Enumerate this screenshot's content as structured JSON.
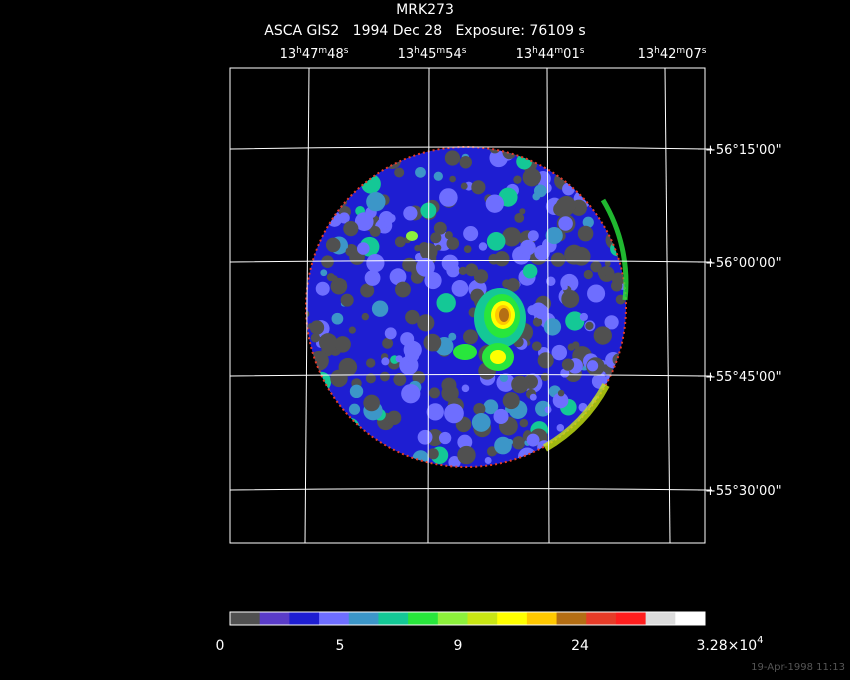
{
  "header": {
    "title": "MRK273",
    "subtitle": "ASCA GIS2   1994 Dec 28   Exposure: 76109 s"
  },
  "ra_labels": [
    [
      "13",
      "h",
      "47",
      "m",
      "48",
      "s"
    ],
    [
      "13",
      "h",
      "45",
      "m",
      "54",
      "s"
    ],
    [
      "13",
      "h",
      "44",
      "m",
      "01",
      "s"
    ],
    [
      "13",
      "h",
      "42",
      "m",
      "07",
      "s"
    ]
  ],
  "dec_labels": [
    "+56°15'00\"",
    "+56°00'00\"",
    "+55°45'00\"",
    "+55°30'00\""
  ],
  "colorbar": {
    "colors": [
      "#505050",
      "#5a3cc8",
      "#1e1ed2",
      "#6e6eff",
      "#3c96c8",
      "#14c896",
      "#28e63c",
      "#8cf03c",
      "#c8e614",
      "#ffff00",
      "#ffc800",
      "#b46e14",
      "#e63c28",
      "#ff1e1e",
      "#dcdcdc",
      "#ffffff"
    ],
    "labels": [
      "0",
      "5",
      "9",
      "24"
    ],
    "max_label": {
      "base": "3.28×10",
      "exponent": "4"
    }
  },
  "timestamp": "19-Apr-1998 11:13"
}
